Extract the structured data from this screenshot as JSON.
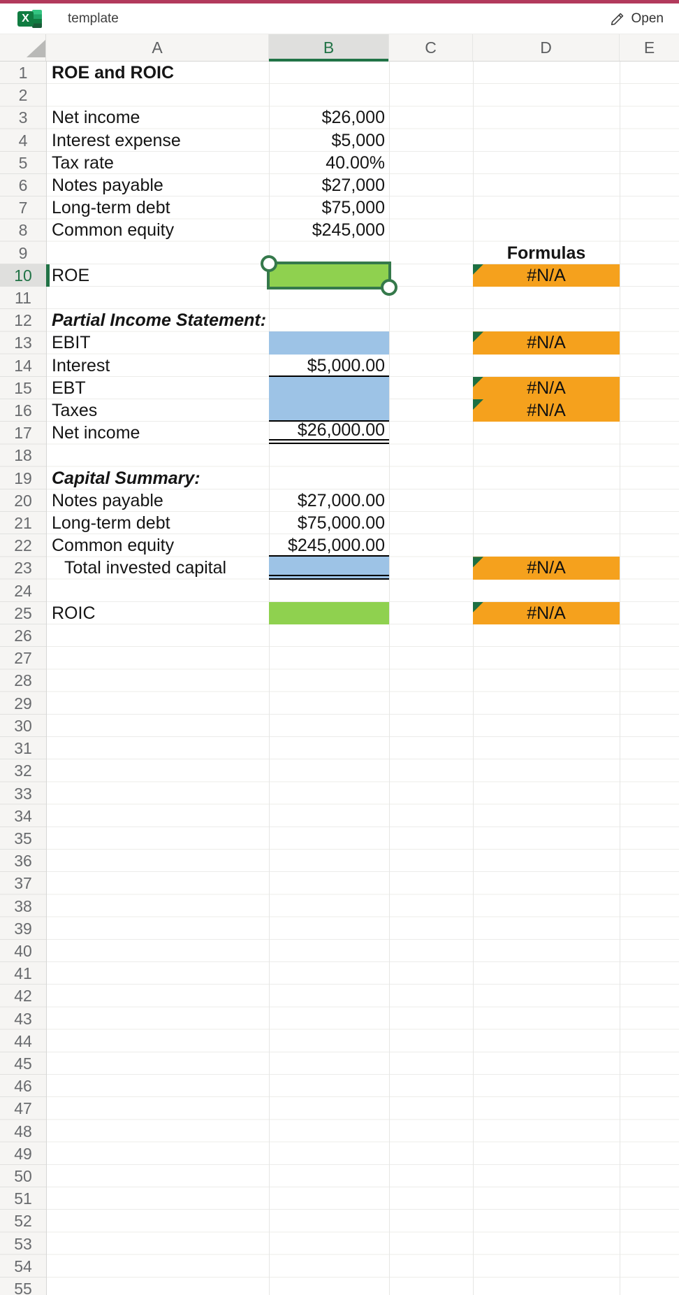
{
  "app_bar": {
    "title": "template",
    "open_label": "Open",
    "logo_letter": "X"
  },
  "colors": {
    "top_bar": "#b23a5c",
    "excel_green": "#217346",
    "selection_border": "#35794b",
    "fill_green": "#8fd14f",
    "fill_blue": "#9dc3e6",
    "fill_orange": "#f5a11d",
    "flag_green": "#1d6f42",
    "header_bg": "#f6f5f3",
    "header_selected_bg": "#dfdfdd"
  },
  "sheet": {
    "columns": [
      "A",
      "B",
      "C",
      "D",
      "E"
    ],
    "row_count": 55,
    "selected_row": 10,
    "selected_column": "B",
    "selected_cell": "B10",
    "cells": {
      "a1": "ROE and ROIC",
      "a3": "Net income",
      "b3": "$26,000",
      "a4": "Interest expense",
      "b4": "$5,000",
      "a5": "Tax rate",
      "b5": "40.00%",
      "a6": "Notes payable",
      "b6": "$27,000",
      "a7": "Long-term debt",
      "b7": "$75,000",
      "a8": "Common equity",
      "b8": "$245,000",
      "d9": "Formulas",
      "a10": "ROE",
      "d10": "#N/A",
      "a12": "Partial Income Statement:",
      "a13": "EBIT",
      "d13": "#N/A",
      "a14": "Interest",
      "b14": "$5,000.00",
      "a15": "EBT",
      "d15": "#N/A",
      "a16": "Taxes",
      "d16": "#N/A",
      "a17": "Net income",
      "b17": "$26,000.00",
      "a19": "Capital Summary:",
      "a20": "Notes payable",
      "b20": "$27,000.00",
      "a21": "Long-term debt",
      "b21": "$75,000.00",
      "a22": "Common equity",
      "b22": "$245,000.00",
      "a23": "Total invested capital",
      "d23": "#N/A",
      "a25": "ROIC",
      "d25": "#N/A"
    }
  }
}
